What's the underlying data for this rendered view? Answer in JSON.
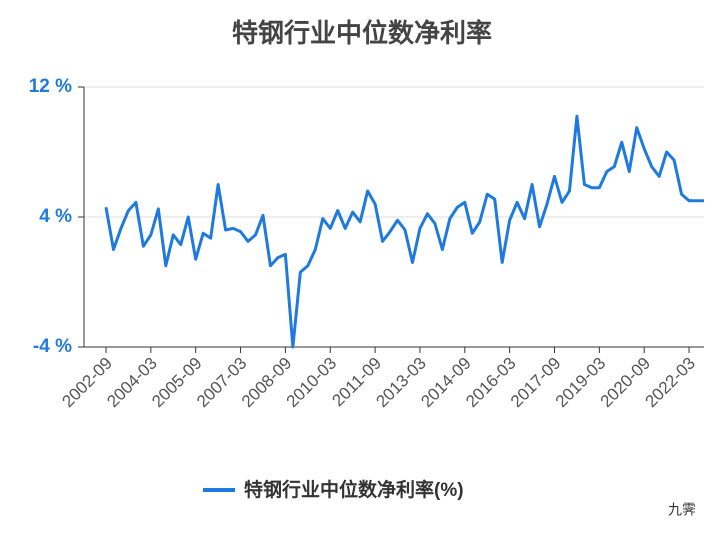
{
  "chart_data": {
    "type": "line",
    "title": "特钢行业中位数净利率",
    "categories": [
      "2002-09",
      null,
      null,
      null,
      null,
      null,
      "2004-03",
      null,
      null,
      null,
      null,
      null,
      "2005-09",
      null,
      null,
      null,
      null,
      null,
      "2007-03",
      null,
      null,
      null,
      null,
      null,
      "2008-09",
      null,
      null,
      null,
      null,
      null,
      "2010-03",
      null,
      null,
      null,
      null,
      null,
      "2011-09",
      null,
      null,
      null,
      null,
      null,
      "2013-03",
      null,
      null,
      null,
      null,
      null,
      "2014-09",
      null,
      null,
      null,
      null,
      null,
      "2016-03",
      null,
      null,
      null,
      null,
      null,
      "2017-09",
      null,
      null,
      null,
      null,
      null,
      "2019-03",
      null,
      null,
      null,
      null,
      null,
      "2020-09",
      null,
      null,
      null,
      null,
      null,
      "2022-03",
      null,
      null
    ],
    "series": [
      {
        "name": "特钢行业中位数净利率(%)",
        "color": "#1f7ae0",
        "values": [
          4.6,
          2.0,
          3.3,
          4.4,
          4.9,
          2.2,
          2.9,
          4.5,
          1.0,
          2.9,
          2.3,
          4.0,
          1.4,
          3.0,
          2.7,
          6.0,
          3.2,
          3.3,
          3.1,
          2.5,
          2.9,
          4.1,
          1.0,
          1.5,
          1.7,
          -4.0,
          0.6,
          1.0,
          2.0,
          3.9,
          3.3,
          4.4,
          3.3,
          4.3,
          3.7,
          5.6,
          4.8,
          2.5,
          3.1,
          3.8,
          3.2,
          1.2,
          3.3,
          4.2,
          3.6,
          2.0,
          3.9,
          4.6,
          4.9,
          3.0,
          3.7,
          5.4,
          5.1,
          1.2,
          3.8,
          4.9,
          3.9,
          6.0,
          3.4,
          4.8,
          6.5,
          4.9,
          5.6,
          10.2,
          6.0,
          5.8,
          5.8,
          6.8,
          7.1,
          8.6,
          6.8,
          9.5,
          8.2,
          7.1,
          6.5,
          8.0,
          7.5,
          5.4,
          5.0,
          5.0,
          5.0
        ]
      }
    ],
    "ylim": [
      -4,
      12
    ],
    "yticks": [
      {
        "value": -4,
        "label": "-4 %"
      },
      {
        "value": 4,
        "label": "4 %"
      },
      {
        "value": 12,
        "label": "12 %"
      }
    ],
    "grid": true,
    "watermark": "九霁"
  }
}
